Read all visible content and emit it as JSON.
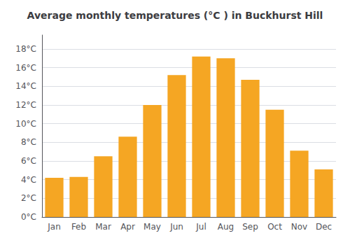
{
  "chart_data": {
    "type": "bar",
    "title": "Average monthly temperatures (°C ) in Buckhurst Hill",
    "categories": [
      "Jan",
      "Feb",
      "Mar",
      "Apr",
      "May",
      "Jun",
      "Jul",
      "Aug",
      "Sep",
      "Oct",
      "Nov",
      "Dec"
    ],
    "values": [
      4.2,
      4.3,
      6.5,
      8.6,
      12.0,
      15.2,
      17.2,
      17.0,
      14.7,
      11.5,
      7.1,
      5.1
    ],
    "color": "#F5A623",
    "ylim": [
      0,
      19.5
    ],
    "yticks": [
      {
        "value": 0,
        "label": "0°C"
      },
      {
        "value": 2,
        "label": "2°C"
      },
      {
        "value": 4,
        "label": "4°C"
      },
      {
        "value": 6,
        "label": "6°C"
      },
      {
        "value": 8,
        "label": "8°C"
      },
      {
        "value": 10,
        "label": "10°C"
      },
      {
        "value": 12,
        "label": "12°C"
      },
      {
        "value": 14,
        "label": "14°C"
      },
      {
        "value": 16,
        "label": "16°C"
      },
      {
        "value": 18,
        "label": "18°C"
      }
    ],
    "grid": true
  }
}
